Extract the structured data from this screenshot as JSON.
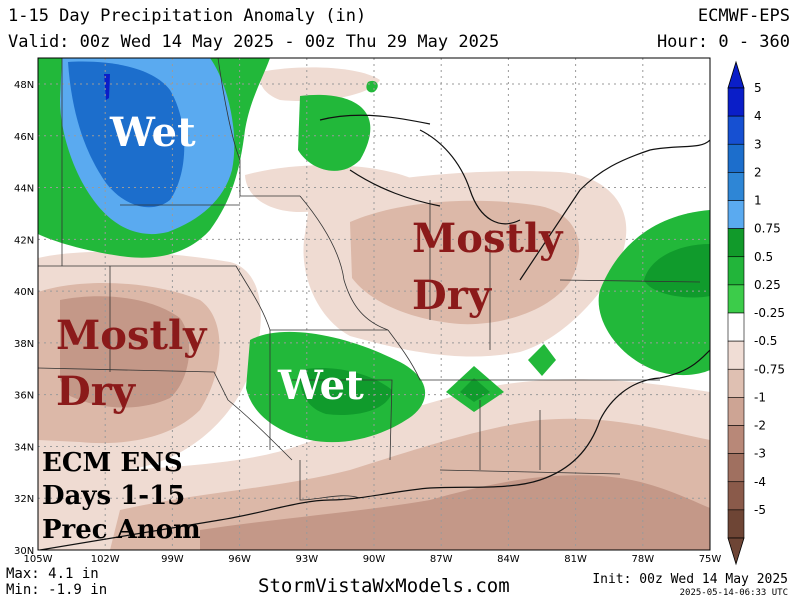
{
  "header": {
    "title": "1-15 Day Precipitation Anomaly (in)",
    "valid": "Valid: 00z Wed 14 May 2025 - 00z Thu 29 May 2025",
    "model": "ECMWF-EPS",
    "hour": "Hour: 0 - 360"
  },
  "map": {
    "lat_labels": [
      "48N",
      "46N",
      "44N",
      "42N",
      "40N",
      "38N",
      "36N",
      "34N",
      "32N",
      "30N"
    ],
    "lon_labels": [
      "105W",
      "102W",
      "99W",
      "96W",
      "93W",
      "90W",
      "87W",
      "84W",
      "81W",
      "78W",
      "75W"
    ],
    "overlay_labels": {
      "wet_north": "Wet",
      "dry_east_1": "Mostly",
      "dry_east_2": "Dry",
      "dry_west_1": "Mostly",
      "dry_west_2": "Dry",
      "wet_south": "Wet",
      "ecm_1": "ECM ENS",
      "ecm_2": "Days 1-15",
      "ecm_3": "Prec Anom"
    },
    "colors": {
      "wet_dark": "#1560bd",
      "wet_mid": "#3a8fe0",
      "wet_light": "#5aaaf0",
      "green_dark": "#109b2c",
      "green": "#22b83a",
      "green_light": "#44cc4c",
      "dry_light": "#efdbd2",
      "dry_mid": "#dcb8a8",
      "dry_dark": "#c49888"
    }
  },
  "legend": {
    "levels": [
      "5",
      "4",
      "3",
      "2",
      "1",
      "0.75",
      "0.5",
      "0.25",
      "-0.25",
      "-0.5",
      "-0.75",
      "-1",
      "-2",
      "-3",
      "-4",
      "-5"
    ],
    "colors": [
      "#0a1ec8",
      "#1650d2",
      "#1c6ecc",
      "#2e86d6",
      "#5aaaf0",
      "#119a2a",
      "#22b53a",
      "#3ccc4a",
      "#ffffff",
      "#f0ddd5",
      "#dfc0b2",
      "#cda494",
      "#b88878",
      "#a07060",
      "#8a5a4a",
      "#6e4535"
    ]
  },
  "footer": {
    "max": "Max: 4.1 in",
    "min": "Min: -1.9 in",
    "site": "StormVistaWxModels.com",
    "init": "Init: 00z Wed 14 May 2025",
    "stamp": "2025-05-14-06:33 UTC"
  }
}
